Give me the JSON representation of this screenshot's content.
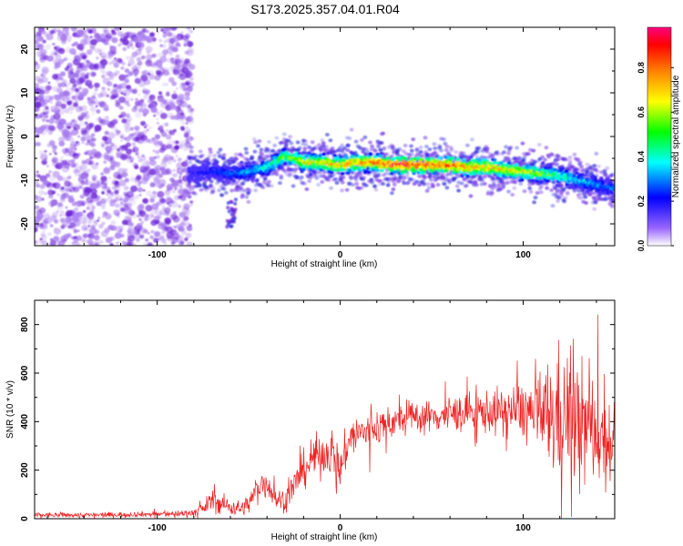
{
  "title": "S173.2025.357.04.01.R04",
  "colors": {
    "snr_line": "#ee2222",
    "axis": "#000000",
    "background": "#ffffff",
    "sparse_noise": "#8844ee"
  },
  "chart_data": [
    {
      "type": "heatmap",
      "xlabel": "Height of straight line (km)",
      "ylabel": "Frequency (Hz)",
      "xlim": [
        -167,
        150
      ],
      "ylim": [
        -25,
        25
      ],
      "xticks": [
        -100,
        0,
        100
      ],
      "yticks": [
        -20,
        -10,
        0,
        10,
        20
      ],
      "grid": false,
      "colorbar": {
        "label": "Normalized spectral amplitude",
        "range": [
          0,
          1
        ],
        "ticks": [
          "0.0",
          "0.2",
          "0.4",
          "0.6",
          "0.8"
        ],
        "colormap": [
          "#8000ff",
          "#0000ff",
          "#00ffff",
          "#00ff00",
          "#ffff00",
          "#ff8000",
          "#ff0000",
          "#ff0080"
        ]
      },
      "ridge": {
        "description_x": [
          -80,
          -70,
          -60,
          -50,
          -40,
          -30,
          -25,
          -20,
          -10,
          0,
          10,
          20,
          30,
          40,
          50,
          60,
          70,
          80,
          90,
          100,
          110,
          120,
          130,
          140,
          150
        ],
        "frequency": [
          -8.5,
          -8,
          -8.5,
          -8,
          -7,
          -4.5,
          -5,
          -6,
          -6,
          -6.5,
          -6,
          -6,
          -6.5,
          -6.5,
          -6.5,
          -6.5,
          -7,
          -7,
          -7.5,
          -8,
          -8.5,
          -9,
          -10,
          -11,
          -12
        ],
        "peak_amplitude": [
          0.2,
          0.25,
          0.3,
          0.35,
          0.45,
          0.6,
          0.65,
          0.7,
          0.75,
          0.8,
          0.85,
          0.9,
          0.95,
          0.95,
          0.95,
          0.9,
          0.85,
          0.8,
          0.75,
          0.7,
          0.6,
          0.5,
          0.4,
          0.35,
          0.3
        ]
      },
      "noise_region_x": [
        -167,
        -83
      ]
    },
    {
      "type": "line",
      "xlabel": "Height of straight line (km)",
      "ylabel": "SNR (10 * v/v)",
      "xlim": [
        -167,
        150
      ],
      "ylim": [
        0,
        900
      ],
      "xticks": [
        -100,
        0,
        100
      ],
      "yticks": [
        0,
        200,
        400,
        600,
        800
      ],
      "grid": false,
      "series": [
        {
          "x": [
            -167,
            -150,
            -130,
            -110,
            -90,
            -80,
            -75,
            -70,
            -65,
            -60,
            -55,
            -50,
            -45,
            -40,
            -35,
            -30,
            -25,
            -20,
            -15,
            -10,
            -5,
            0,
            5,
            10,
            15,
            20,
            25,
            30,
            35,
            40,
            50,
            60,
            70,
            80,
            90,
            100,
            105,
            110,
            115,
            120,
            125,
            130,
            135,
            140,
            145,
            150
          ],
          "y": [
            15,
            15,
            15,
            18,
            20,
            25,
            40,
            80,
            60,
            50,
            40,
            60,
            130,
            150,
            80,
            80,
            140,
            200,
            250,
            260,
            290,
            200,
            330,
            350,
            360,
            380,
            390,
            400,
            410,
            420,
            420,
            430,
            440,
            440,
            440,
            450,
            430,
            420,
            420,
            420,
            430,
            400,
            380,
            360,
            330,
            320
          ],
          "spread": [
            10,
            10,
            10,
            10,
            12,
            15,
            25,
            40,
            40,
            35,
            30,
            35,
            60,
            60,
            40,
            40,
            60,
            70,
            80,
            80,
            80,
            80,
            80,
            80,
            70,
            70,
            60,
            60,
            60,
            60,
            60,
            70,
            70,
            80,
            90,
            110,
            140,
            180,
            220,
            260,
            240,
            230,
            220,
            200,
            180,
            160
          ]
        }
      ]
    }
  ]
}
